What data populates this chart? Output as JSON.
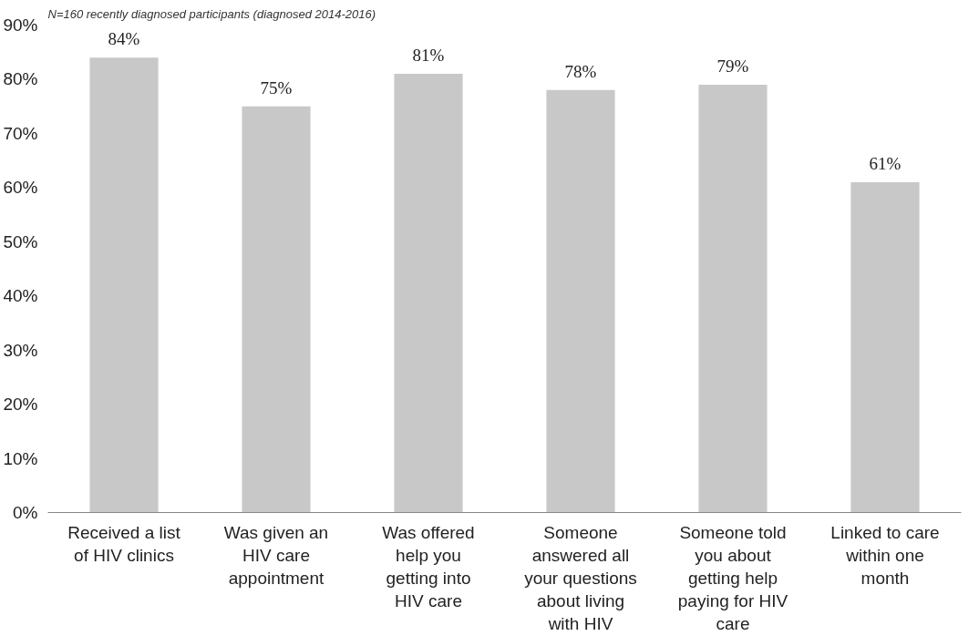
{
  "chart_data": {
    "type": "bar",
    "subtitle": "N=160 recently diagnosed participants (diagnosed 2014-2016)",
    "categories": [
      "Received a list of HIV clinics",
      "Was given an HIV care appointment",
      "Was offered help you getting into HIV care",
      "Someone answered all your questions about living with HIV",
      "Someone told you about getting help paying for HIV care",
      "Linked to care within one month"
    ],
    "values": [
      84,
      75,
      81,
      78,
      79,
      61
    ],
    "value_labels": [
      "84%",
      "75%",
      "81%",
      "78%",
      "79%",
      "61%"
    ],
    "color": "#c8c8c8",
    "ylim": [
      0,
      90
    ],
    "yticks": [
      {
        "value": 0,
        "label": "0%"
      },
      {
        "value": 10,
        "label": "10%"
      },
      {
        "value": 20,
        "label": "20%"
      },
      {
        "value": 30,
        "label": "30%"
      },
      {
        "value": 40,
        "label": "40%"
      },
      {
        "value": 50,
        "label": "50%"
      },
      {
        "value": 60,
        "label": "60%"
      },
      {
        "value": 70,
        "label": "70%"
      },
      {
        "value": 80,
        "label": "80%"
      },
      {
        "value": 90,
        "label": "90%"
      }
    ],
    "grid": false
  }
}
